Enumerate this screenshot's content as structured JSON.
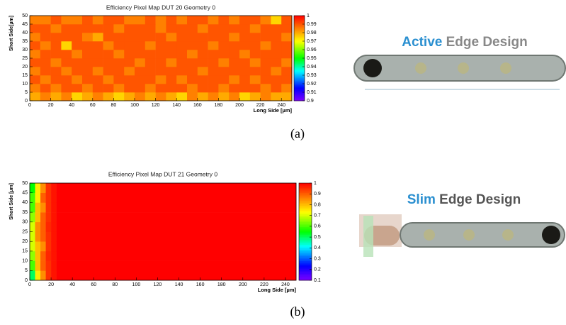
{
  "chart_data": [
    {
      "type": "heatmap",
      "title": "Efficiency Pixel Map DUT 20 Geometry 0",
      "xlabel": "Long Side [µm]",
      "ylabel": "Short Side[µm]",
      "xbins": [
        0,
        10,
        20,
        30,
        40,
        50,
        60,
        70,
        80,
        90,
        100,
        110,
        120,
        130,
        140,
        150,
        160,
        170,
        180,
        190,
        200,
        210,
        220,
        230,
        240,
        250
      ],
      "ybins": [
        0,
        5,
        10,
        15,
        20,
        25,
        30,
        35,
        40,
        45,
        50
      ],
      "z": [
        [
          0.98,
          0.985,
          0.98,
          0.985,
          0.975,
          0.98,
          0.985,
          0.98,
          0.975,
          0.98,
          0.985,
          0.98,
          0.985,
          0.98,
          0.975,
          0.985,
          0.98,
          0.985,
          0.98,
          0.985,
          0.975,
          0.98,
          0.985,
          0.98,
          0.98
        ],
        [
          0.985,
          0.99,
          0.985,
          0.99,
          0.99,
          0.985,
          0.99,
          0.99,
          0.985,
          0.99,
          0.99,
          0.985,
          0.99,
          0.99,
          0.99,
          0.985,
          0.99,
          0.99,
          0.985,
          0.99,
          0.99,
          0.99,
          0.985,
          0.99,
          0.985
        ],
        [
          0.99,
          0.985,
          0.99,
          0.99,
          0.985,
          0.99,
          0.99,
          0.985,
          0.99,
          0.99,
          0.99,
          0.99,
          0.985,
          0.99,
          0.985,
          0.99,
          0.99,
          0.99,
          0.99,
          0.985,
          0.99,
          0.985,
          0.99,
          0.99,
          0.99
        ],
        [
          0.985,
          0.99,
          0.99,
          0.985,
          0.99,
          0.99,
          0.985,
          0.99,
          0.99,
          0.985,
          0.99,
          0.99,
          0.99,
          0.99,
          0.99,
          0.99,
          0.985,
          0.99,
          0.99,
          0.99,
          0.99,
          0.99,
          0.99,
          0.985,
          0.99
        ],
        [
          0.99,
          0.99,
          0.985,
          0.99,
          0.99,
          0.99,
          0.99,
          0.99,
          0.99,
          0.99,
          0.985,
          0.99,
          0.99,
          0.985,
          0.99,
          0.99,
          0.99,
          0.99,
          0.985,
          0.99,
          0.99,
          0.985,
          0.99,
          0.99,
          0.985
        ],
        [
          0.985,
          0.99,
          0.99,
          0.99,
          0.985,
          0.99,
          0.99,
          0.99,
          0.985,
          0.99,
          0.99,
          0.99,
          0.99,
          0.99,
          0.99,
          0.985,
          0.99,
          0.99,
          0.99,
          0.99,
          0.985,
          0.99,
          0.99,
          0.99,
          0.99
        ],
        [
          0.99,
          0.985,
          0.99,
          0.975,
          0.99,
          0.99,
          0.99,
          0.985,
          0.99,
          0.99,
          0.99,
          0.985,
          0.99,
          0.99,
          0.99,
          0.99,
          0.99,
          0.985,
          0.99,
          0.99,
          0.99,
          0.99,
          0.985,
          0.99,
          0.99
        ],
        [
          0.985,
          0.99,
          0.99,
          0.99,
          0.99,
          0.985,
          0.98,
          0.99,
          0.99,
          0.99,
          0.99,
          0.99,
          0.99,
          0.985,
          0.99,
          0.99,
          0.99,
          0.99,
          0.99,
          0.985,
          0.99,
          0.99,
          0.99,
          0.99,
          0.985
        ],
        [
          0.99,
          0.99,
          0.985,
          0.99,
          0.99,
          0.99,
          0.99,
          0.99,
          0.985,
          0.99,
          0.99,
          0.99,
          0.985,
          0.99,
          0.99,
          0.99,
          0.985,
          0.99,
          0.99,
          0.99,
          0.99,
          0.985,
          0.99,
          0.99,
          0.99
        ],
        [
          0.985,
          0.985,
          0.99,
          0.985,
          0.985,
          0.99,
          0.985,
          0.99,
          0.99,
          0.985,
          0.985,
          0.99,
          0.985,
          0.99,
          0.985,
          0.99,
          0.99,
          0.985,
          0.99,
          0.985,
          0.99,
          0.99,
          0.985,
          0.975,
          0.99
        ]
      ],
      "xlim": [
        0,
        250
      ],
      "ylim": [
        0,
        50
      ],
      "zlim": [
        0.9,
        1
      ],
      "xticks": [
        0,
        20,
        40,
        60,
        80,
        100,
        120,
        140,
        160,
        180,
        200,
        220,
        240
      ],
      "yticks": [
        0,
        5,
        10,
        15,
        20,
        25,
        30,
        35,
        40,
        45,
        50
      ],
      "zticks": [
        0.9,
        0.91,
        0.92,
        0.93,
        0.94,
        0.95,
        0.96,
        0.97,
        0.98,
        0.99,
        1
      ]
    },
    {
      "type": "heatmap",
      "title": "Efficiency Pixel Map DUT 21 Geometry 0",
      "xlabel": "Long Side [µm]",
      "ylabel": "Short Side [µm]",
      "xbins": [
        0,
        5,
        10,
        15,
        20,
        25,
        250
      ],
      "ybins": [
        0,
        5,
        10,
        15,
        20,
        25,
        30,
        35,
        40,
        45,
        50
      ],
      "z": [
        [
          0.5,
          0.75,
          0.85,
          0.95,
          0.98,
          1
        ],
        [
          0.6,
          0.8,
          0.9,
          0.95,
          0.98,
          1
        ],
        [
          0.65,
          0.8,
          0.9,
          0.96,
          0.98,
          1
        ],
        [
          0.7,
          0.8,
          0.85,
          0.95,
          0.98,
          1
        ],
        [
          0.7,
          0.85,
          0.9,
          0.95,
          0.98,
          1
        ],
        [
          0.7,
          0.85,
          0.9,
          0.96,
          0.98,
          1
        ],
        [
          0.65,
          0.8,
          0.9,
          0.95,
          0.98,
          1
        ],
        [
          0.6,
          0.8,
          0.85,
          0.95,
          0.98,
          1
        ],
        [
          0.6,
          0.75,
          0.9,
          0.95,
          0.98,
          1
        ],
        [
          0.55,
          0.75,
          0.85,
          0.95,
          0.98,
          1
        ]
      ],
      "xlim": [
        0,
        250
      ],
      "ylim": [
        0,
        50
      ],
      "zlim": [
        0.1,
        1
      ],
      "xticks": [
        0,
        20,
        40,
        60,
        80,
        100,
        120,
        140,
        160,
        180,
        200,
        220,
        240
      ],
      "yticks": [
        0,
        5,
        10,
        15,
        20,
        25,
        30,
        35,
        40,
        45,
        50
      ],
      "zticks": [
        0.1,
        0.2,
        0.3,
        0.4,
        0.5,
        0.6,
        0.7,
        0.8,
        0.9,
        1
      ]
    }
  ],
  "designs": [
    {
      "highlight": "Active",
      "rest": "Edge Design"
    },
    {
      "highlight": "Slim",
      "rest": "Edge Design"
    }
  ],
  "captions": [
    "(a)",
    "(b)"
  ]
}
